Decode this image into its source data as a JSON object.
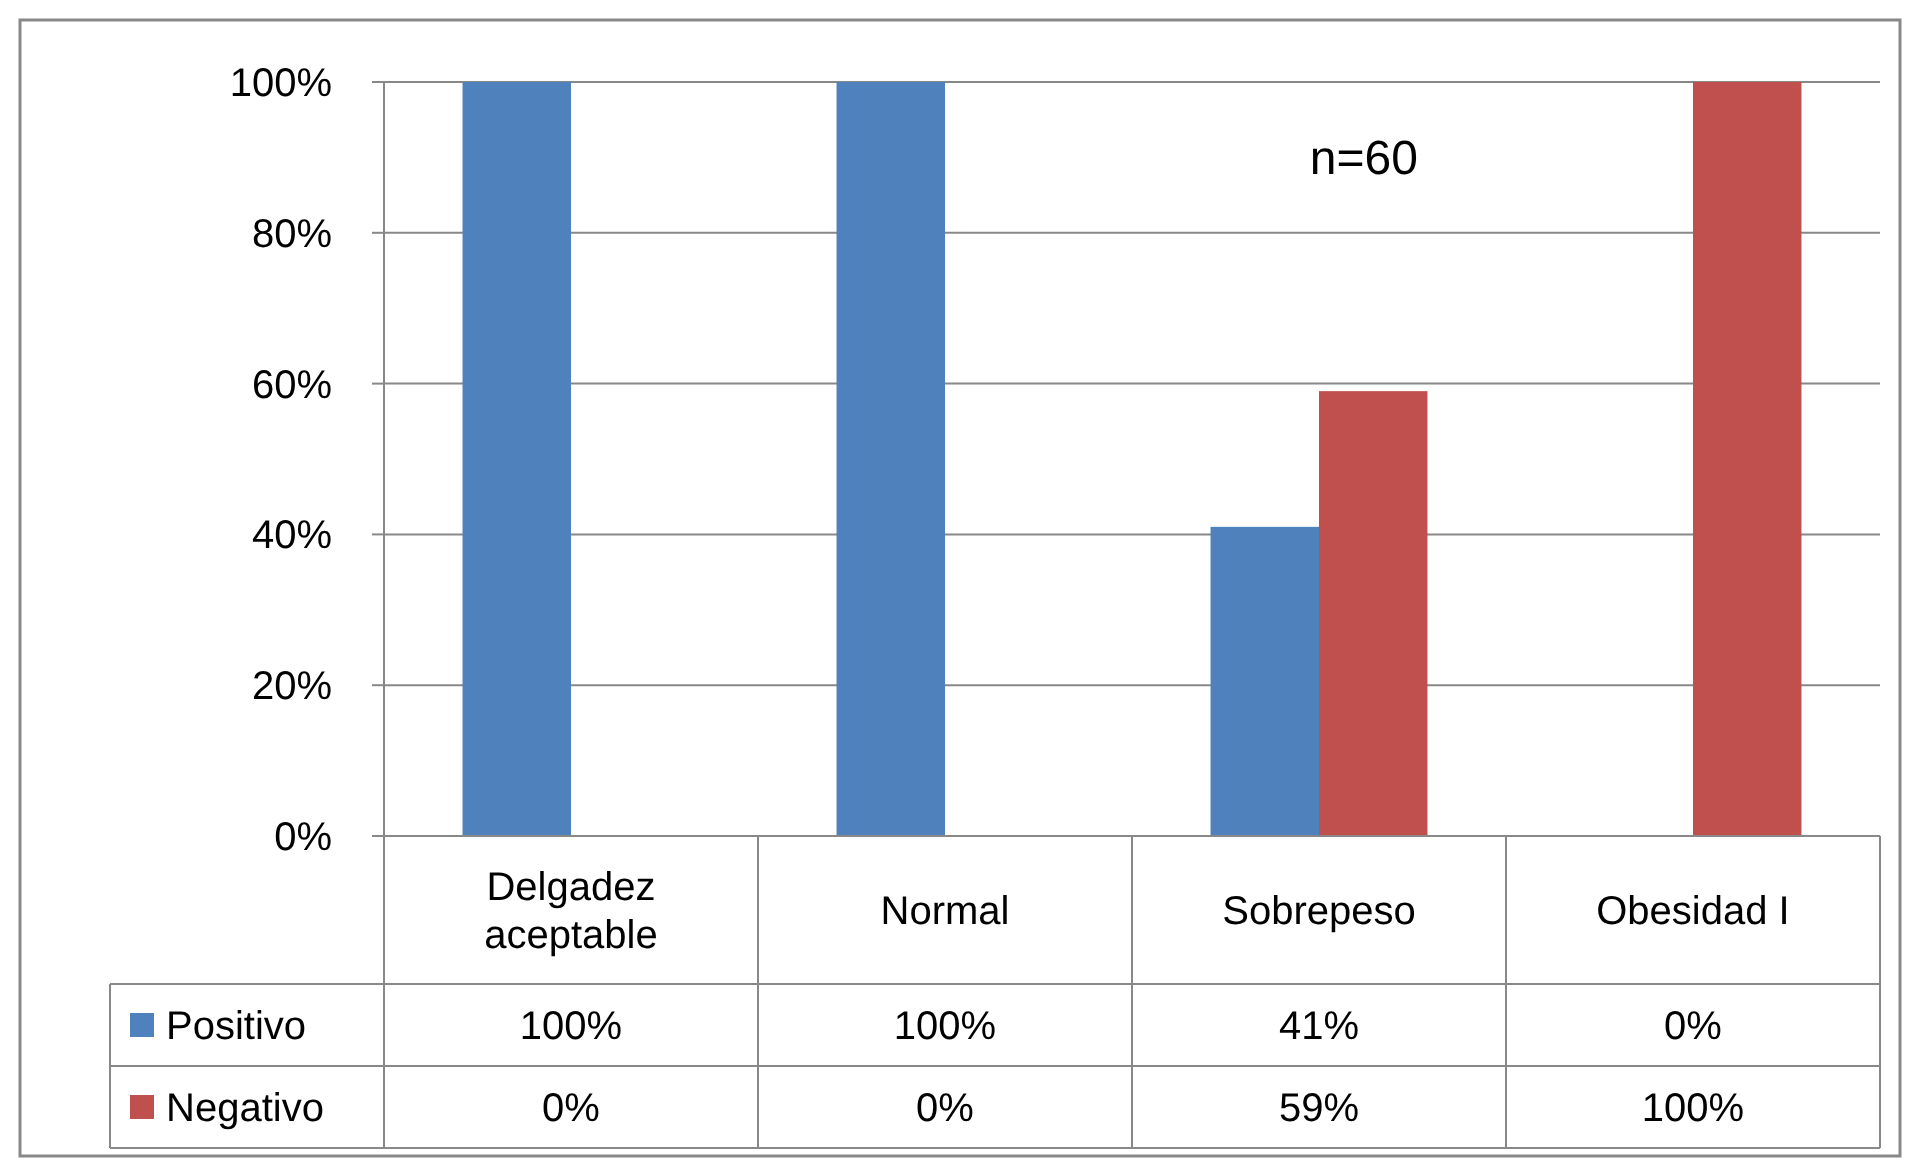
{
  "chart_data": {
    "type": "bar",
    "categories": [
      "Delgadez aceptable",
      "Normal",
      "Sobrepeso",
      "Obesidad I"
    ],
    "series": [
      {
        "name": "Positivo",
        "color": "#4f81bd",
        "values": [
          100,
          100,
          41,
          0
        ],
        "value_labels": [
          "100%",
          "100%",
          "41%",
          "0%"
        ]
      },
      {
        "name": "Negativo",
        "color": "#c0504d",
        "values": [
          0,
          0,
          59,
          100
        ],
        "value_labels": [
          "0%",
          "0%",
          "59%",
          "100%"
        ]
      }
    ],
    "ylim": [
      0,
      100
    ],
    "yticks": [
      {
        "value": 0,
        "label": "0%"
      },
      {
        "value": 20,
        "label": "20%"
      },
      {
        "value": 40,
        "label": "40%"
      },
      {
        "value": 60,
        "label": "60%"
      },
      {
        "value": 80,
        "label": "80%"
      },
      {
        "value": 100,
        "label": "100%"
      }
    ],
    "grid": "y",
    "legend": "bottom",
    "annotations": [
      "n=60"
    ]
  }
}
